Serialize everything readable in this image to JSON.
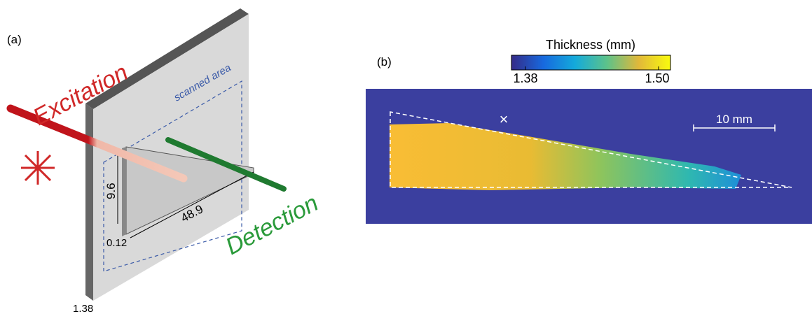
{
  "panel_a": {
    "label": "(a)",
    "excitation": "Excitation",
    "scanned_area": "scanned area",
    "height": "9.6",
    "length": "48.9",
    "gap": "0.12",
    "detection": "Detection",
    "thickness": "1.38"
  },
  "panel_b": {
    "label": "(b)",
    "colorbar_title": "Thickness (mm)",
    "colorbar_min": "1.38",
    "colorbar_max": "1.50",
    "marker": "×",
    "scale_bar": "10 mm"
  }
}
